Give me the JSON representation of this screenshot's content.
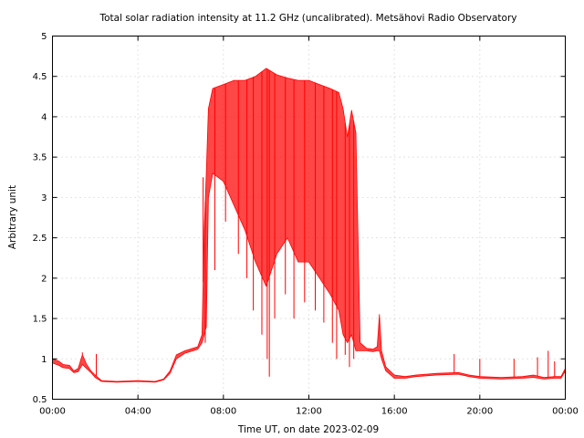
{
  "chart_data": {
    "type": "line",
    "title": "Total solar radiation intensity at 11.2 GHz (uncalibrated). Metsähovi Radio Observatory",
    "xlabel": "Time UT, on date 2023-02-09",
    "ylabel": "Arbitrary unit",
    "x_unit": "hours UT",
    "xlim": [
      0,
      24
    ],
    "ylim": [
      0.5,
      5
    ],
    "x_ticks": [
      0,
      4,
      8,
      12,
      16,
      20,
      24
    ],
    "x_tick_labels": [
      "00:00",
      "04:00",
      "08:00",
      "12:00",
      "16:00",
      "20:00",
      "00:00"
    ],
    "y_ticks": [
      0.5,
      1,
      1.5,
      2,
      2.5,
      3,
      3.5,
      4,
      4.5,
      5
    ],
    "y_tick_labels": [
      "0.5",
      "1",
      "1.5",
      "2",
      "2.5",
      "3",
      "3.5",
      "4",
      "4.5",
      "5"
    ],
    "grid": true,
    "legend": "none",
    "series": [
      {
        "color": "#ff0000",
        "upper_envelope": [
          [
            0.0,
            1.0
          ],
          [
            0.3,
            0.97
          ],
          [
            0.5,
            0.93
          ],
          [
            0.8,
            0.92
          ],
          [
            1.0,
            0.85
          ],
          [
            1.2,
            0.88
          ],
          [
            1.4,
            1.05
          ],
          [
            1.6,
            0.93
          ],
          [
            1.8,
            0.85
          ],
          [
            2.0,
            0.8
          ],
          [
            2.3,
            0.73
          ],
          [
            3.0,
            0.72
          ],
          [
            4.0,
            0.73
          ],
          [
            4.8,
            0.72
          ],
          [
            5.2,
            0.75
          ],
          [
            5.5,
            0.85
          ],
          [
            5.8,
            1.05
          ],
          [
            6.2,
            1.1
          ],
          [
            6.8,
            1.15
          ],
          [
            7.0,
            1.3
          ],
          [
            7.1,
            2.6
          ],
          [
            7.2,
            3.3
          ],
          [
            7.3,
            4.1
          ],
          [
            7.5,
            4.35
          ],
          [
            8.0,
            4.4
          ],
          [
            8.5,
            4.45
          ],
          [
            9.0,
            4.45
          ],
          [
            9.5,
            4.5
          ],
          [
            10.0,
            4.6
          ],
          [
            10.5,
            4.52
          ],
          [
            11.0,
            4.48
          ],
          [
            11.5,
            4.45
          ],
          [
            12.0,
            4.45
          ],
          [
            12.5,
            4.4
          ],
          [
            13.0,
            4.35
          ],
          [
            13.4,
            4.3
          ],
          [
            13.6,
            4.1
          ],
          [
            13.8,
            3.75
          ],
          [
            14.0,
            4.08
          ],
          [
            14.2,
            3.8
          ],
          [
            14.4,
            1.2
          ],
          [
            14.7,
            1.13
          ],
          [
            15.0,
            1.12
          ],
          [
            15.2,
            1.15
          ],
          [
            15.3,
            1.55
          ],
          [
            15.4,
            1.1
          ],
          [
            15.6,
            0.9
          ],
          [
            16.0,
            0.8
          ],
          [
            16.5,
            0.78
          ],
          [
            17.0,
            0.8
          ],
          [
            18.0,
            0.82
          ],
          [
            19.0,
            0.83
          ],
          [
            19.5,
            0.8
          ],
          [
            20.0,
            0.78
          ],
          [
            21.0,
            0.77
          ],
          [
            22.0,
            0.78
          ],
          [
            22.5,
            0.8
          ],
          [
            23.0,
            0.77
          ],
          [
            23.5,
            0.78
          ],
          [
            23.8,
            0.78
          ],
          [
            24.0,
            0.88
          ]
        ],
        "lower_envelope": [
          [
            0.0,
            0.95
          ],
          [
            0.3,
            0.92
          ],
          [
            0.5,
            0.89
          ],
          [
            0.8,
            0.88
          ],
          [
            1.0,
            0.83
          ],
          [
            1.2,
            0.84
          ],
          [
            1.4,
            0.93
          ],
          [
            1.6,
            0.88
          ],
          [
            1.8,
            0.83
          ],
          [
            2.0,
            0.77
          ],
          [
            2.3,
            0.72
          ],
          [
            3.0,
            0.71
          ],
          [
            4.0,
            0.72
          ],
          [
            4.8,
            0.71
          ],
          [
            5.2,
            0.74
          ],
          [
            5.5,
            0.82
          ],
          [
            5.8,
            1.0
          ],
          [
            6.2,
            1.07
          ],
          [
            6.8,
            1.12
          ],
          [
            7.0,
            1.2
          ],
          [
            7.1,
            1.3
          ],
          [
            7.2,
            1.4
          ],
          [
            7.3,
            3.0
          ],
          [
            7.5,
            3.3
          ],
          [
            8.0,
            3.2
          ],
          [
            8.5,
            2.9
          ],
          [
            9.0,
            2.6
          ],
          [
            9.5,
            2.2
          ],
          [
            10.0,
            1.9
          ],
          [
            10.5,
            2.3
          ],
          [
            11.0,
            2.5
          ],
          [
            11.5,
            2.2
          ],
          [
            12.0,
            2.2
          ],
          [
            12.5,
            2.0
          ],
          [
            13.0,
            1.8
          ],
          [
            13.4,
            1.6
          ],
          [
            13.6,
            1.3
          ],
          [
            13.8,
            1.2
          ],
          [
            14.0,
            1.3
          ],
          [
            14.2,
            1.1
          ],
          [
            14.4,
            1.1
          ],
          [
            14.7,
            1.1
          ],
          [
            15.0,
            1.09
          ],
          [
            15.2,
            1.1
          ],
          [
            15.3,
            1.1
          ],
          [
            15.4,
            1.0
          ],
          [
            15.6,
            0.85
          ],
          [
            16.0,
            0.76
          ],
          [
            16.5,
            0.76
          ],
          [
            17.0,
            0.78
          ],
          [
            18.0,
            0.8
          ],
          [
            19.0,
            0.81
          ],
          [
            19.5,
            0.78
          ],
          [
            20.0,
            0.76
          ],
          [
            21.0,
            0.75
          ],
          [
            22.0,
            0.76
          ],
          [
            22.5,
            0.77
          ],
          [
            23.0,
            0.75
          ],
          [
            23.5,
            0.76
          ],
          [
            23.8,
            0.76
          ],
          [
            24.0,
            0.85
          ]
        ],
        "dips": [
          [
            7.15,
            1.2
          ],
          [
            7.6,
            2.1
          ],
          [
            8.1,
            2.7
          ],
          [
            8.7,
            2.3
          ],
          [
            9.1,
            2.0
          ],
          [
            9.4,
            1.6
          ],
          [
            9.8,
            1.3
          ],
          [
            10.05,
            1.0
          ],
          [
            10.15,
            0.78
          ],
          [
            10.4,
            1.5
          ],
          [
            10.9,
            1.8
          ],
          [
            11.3,
            1.5
          ],
          [
            11.8,
            1.7
          ],
          [
            12.3,
            1.6
          ],
          [
            12.7,
            1.45
          ],
          [
            13.1,
            1.2
          ],
          [
            13.3,
            1.0
          ],
          [
            13.7,
            1.05
          ],
          [
            13.9,
            0.9
          ],
          [
            14.1,
            1.0
          ]
        ],
        "spikes": [
          [
            1.4,
            1.08
          ],
          [
            2.05,
            1.06
          ],
          [
            7.05,
            3.25
          ],
          [
            15.3,
            1.55
          ],
          [
            18.8,
            1.06
          ],
          [
            20.0,
            1.0
          ],
          [
            21.6,
            1.0
          ],
          [
            22.7,
            1.02
          ],
          [
            23.2,
            1.1
          ],
          [
            23.5,
            0.97
          ]
        ]
      }
    ]
  }
}
